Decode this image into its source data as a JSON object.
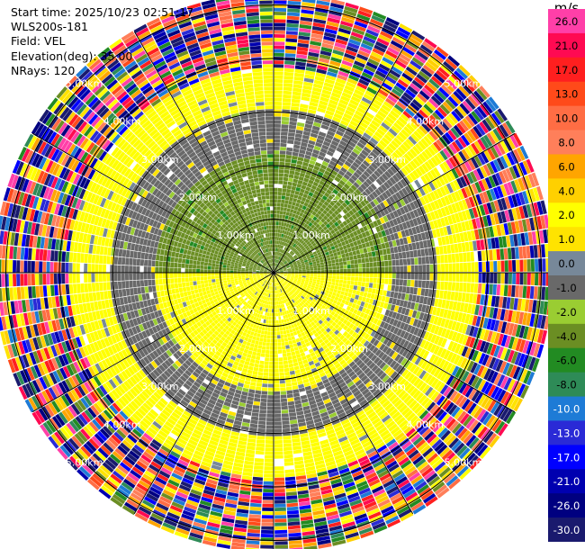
{
  "header": {
    "start_time": "Start time: 2025/10/23 02:51:17",
    "instrument": "WLS200s-181",
    "field": "Field: VEL",
    "elevation": "Elevation(deg): 35.00",
    "nrays": "NRays: 120"
  },
  "colorbar": {
    "unit": "m/s",
    "bins": [
      {
        "label": "26.0",
        "color": "#ff3fa8"
      },
      {
        "label": "21.0",
        "color": "#ff0a52"
      },
      {
        "label": "17.0",
        "color": "#ff1f1f"
      },
      {
        "label": "13.0",
        "color": "#ff4a1a"
      },
      {
        "label": "10.0",
        "color": "#ff6d44"
      },
      {
        "label": "8.0",
        "color": "#ff7f5a"
      },
      {
        "label": "6.0",
        "color": "#ffa500"
      },
      {
        "label": "4.0",
        "color": "#ffd000"
      },
      {
        "label": "2.0",
        "color": "#ffff00"
      },
      {
        "label": "1.0",
        "color": "#ffe300"
      },
      {
        "label": "0.0",
        "color": "#778899"
      },
      {
        "label": "-1.0",
        "color": "#696969"
      },
      {
        "label": "-2.0",
        "color": "#9acd32"
      },
      {
        "label": "-4.0",
        "color": "#6b8e23"
      },
      {
        "label": "-6.0",
        "color": "#228b22"
      },
      {
        "label": "-8.0",
        "color": "#2e8b57"
      },
      {
        "label": "-10.0",
        "color": "#1e7bd6"
      },
      {
        "label": "-13.0",
        "color": "#2a2ad6"
      },
      {
        "label": "-17.0",
        "color": "#0000ff"
      },
      {
        "label": "-21.0",
        "color": "#0000b0"
      },
      {
        "label": "-26.0",
        "color": "#000080"
      },
      {
        "label": "-30.0",
        "color": "#1a1a6e"
      }
    ]
  },
  "chart_data": {
    "type": "heatmap",
    "projection": "polar PPI",
    "field": "VEL",
    "nrays": 120,
    "range_rings_km": [
      1,
      2,
      3,
      4,
      5
    ],
    "ring_labels": [
      "1.00km",
      "2.00km",
      "3.00km",
      "4.00km",
      "5.00km"
    ],
    "max_range_km": 5.2,
    "spokes_deg": [
      0,
      30,
      60,
      90,
      120,
      150,
      180,
      210,
      240,
      270,
      300,
      330
    ],
    "vmin": -30,
    "vmax": 30,
    "regions": [
      {
        "range_km": [
          0.0,
          1.2
        ],
        "side": "upper",
        "velocity_ms": -4.0
      },
      {
        "range_km": [
          0.0,
          1.2
        ],
        "side": "lower",
        "velocity_ms": 2.0
      },
      {
        "range_km": [
          1.2,
          2.2
        ],
        "side": "upper",
        "velocity_ms": -3.0
      },
      {
        "range_km": [
          1.2,
          2.2
        ],
        "side": "lower",
        "velocity_ms": 2.0
      },
      {
        "range_km": [
          2.2,
          3.0
        ],
        "side": "upper",
        "velocity_ms": -0.5
      },
      {
        "range_km": [
          2.2,
          3.0
        ],
        "side": "lower",
        "velocity_ms": -0.5
      },
      {
        "range_km": [
          3.0,
          3.8
        ],
        "side": "all",
        "velocity_ms": 2.0
      },
      {
        "range_km": [
          3.8,
          5.2
        ],
        "side": "all",
        "velocity_ms": "noise"
      }
    ]
  }
}
